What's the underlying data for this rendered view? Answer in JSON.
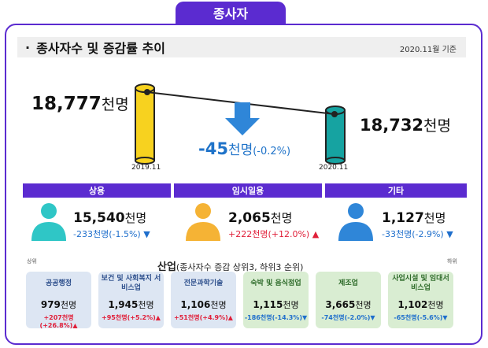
{
  "tab_label": "종사자",
  "header": {
    "bullet": "·",
    "title": "종사자수 및 증감률 추이",
    "reference": "2020.11월 기준"
  },
  "summary": {
    "prev": {
      "value": "18,777",
      "unit": "천명",
      "period": "2019.11"
    },
    "curr": {
      "value": "18,732",
      "unit": "천명",
      "period": "2020.11"
    },
    "change": {
      "value": "-45",
      "unit": "천명",
      "rate": "(-0.2%)"
    }
  },
  "categories": [
    {
      "label": "상용",
      "value": "15,540",
      "unit": "천명",
      "change": "-233천명(-1.5%)",
      "direction": "down",
      "color": "#2fc6c6"
    },
    {
      "label": "임시일용",
      "value": "2,065",
      "unit": "천명",
      "change": "+222천명(+12.0%)",
      "direction": "up",
      "color": "#f5b335"
    },
    {
      "label": "기타",
      "value": "1,127",
      "unit": "천명",
      "change": "-33천명(-2.9%)",
      "direction": "down",
      "color": "#2f86d8"
    }
  ],
  "industry": {
    "title_bold": "산업",
    "title_rest": "(종사자수 증감 상위3, 하위3 순위)",
    "left_label": "상위",
    "right_label": "하위",
    "cards": [
      {
        "name": "공공행정",
        "value": "979",
        "unit": "천명",
        "change": "+207천명(+26.8%)",
        "direction": "up"
      },
      {
        "name": "보건 및 사회복지 서비스업",
        "value": "1,945",
        "unit": "천명",
        "change": "+95천명(+5.2%)",
        "direction": "up"
      },
      {
        "name": "전문과학기술",
        "value": "1,106",
        "unit": "천명",
        "change": "+51천명(+4.9%)",
        "direction": "up"
      },
      {
        "name": "숙박 및 음식점업",
        "value": "1,115",
        "unit": "천명",
        "change": "-186천명(-14.3%)",
        "direction": "down"
      },
      {
        "name": "제조업",
        "value": "3,665",
        "unit": "천명",
        "change": "-74천명(-2.0%)",
        "direction": "down"
      },
      {
        "name": "사업시설 및 임대서비스업",
        "value": "1,102",
        "unit": "천명",
        "change": "-65천명(-5.6%)",
        "direction": "down"
      }
    ]
  },
  "colors": {
    "accent": "#5b2bd0",
    "down": "#1f6fcc",
    "up": "#e0203a",
    "yellow_bar": "#f7d21f",
    "teal_bar": "#16a3a1"
  }
}
